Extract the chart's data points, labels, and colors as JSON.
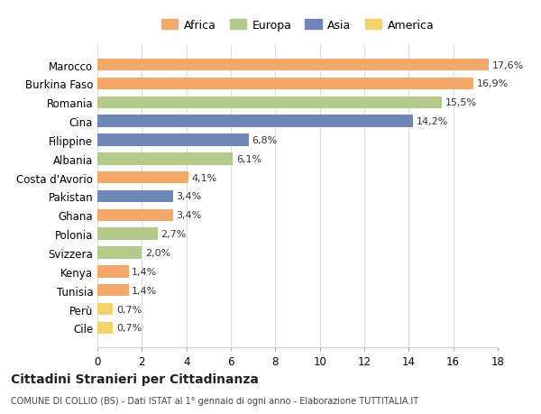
{
  "countries": [
    "Marocco",
    "Burkina Faso",
    "Romania",
    "Cina",
    "Filippine",
    "Albania",
    "Costa d'Avorio",
    "Pakistan",
    "Ghana",
    "Polonia",
    "Svizzera",
    "Kenya",
    "Tunisia",
    "Perù",
    "Cile"
  ],
  "values": [
    17.6,
    16.9,
    15.5,
    14.2,
    6.8,
    6.1,
    4.1,
    3.4,
    3.4,
    2.7,
    2.0,
    1.4,
    1.4,
    0.7,
    0.7
  ],
  "labels": [
    "17,6%",
    "16,9%",
    "15,5%",
    "14,2%",
    "6,8%",
    "6,1%",
    "4,1%",
    "3,4%",
    "3,4%",
    "2,7%",
    "2,0%",
    "1,4%",
    "1,4%",
    "0,7%",
    "0,7%"
  ],
  "continents": [
    "Africa",
    "Africa",
    "Europa",
    "Asia",
    "Asia",
    "Europa",
    "Africa",
    "Asia",
    "Africa",
    "Europa",
    "Europa",
    "Africa",
    "Africa",
    "America",
    "America"
  ],
  "colors": {
    "Africa": "#F4A96A",
    "Europa": "#B5C98A",
    "Asia": "#6E86B8",
    "America": "#F5D16A"
  },
  "legend_order": [
    "Africa",
    "Europa",
    "Asia",
    "America"
  ],
  "title": "Cittadini Stranieri per Cittadinanza",
  "subtitle": "COMUNE DI COLLIO (BS) - Dati ISTAT al 1° gennaio di ogni anno - Elaborazione TUTTITALIA.IT",
  "xlim": [
    0,
    18
  ],
  "xticks": [
    0,
    2,
    4,
    6,
    8,
    10,
    12,
    14,
    16,
    18
  ],
  "background_color": "#ffffff",
  "grid_color": "#dddddd"
}
